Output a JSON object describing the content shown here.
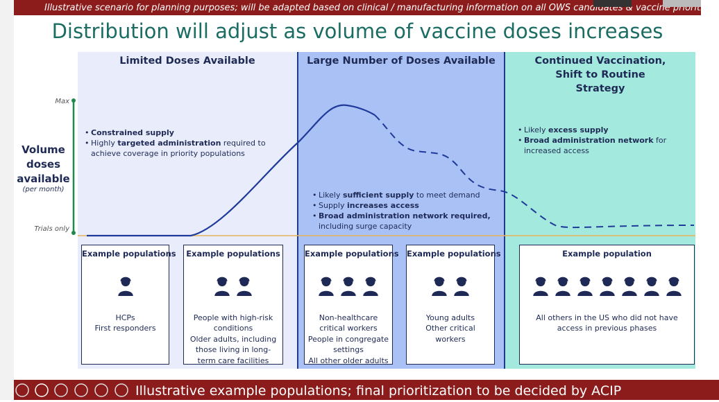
{
  "banner": "Illustrative scenario for planning purposes; will be adapted based on clinical / manufacturing information on all OWS candidates & vaccine prioritization",
  "title": "Distribution will adjust as volume of vaccine doses increases",
  "axis": {
    "label": "Volume doses available",
    "sublabel": "(per month)",
    "max": "Max",
    "min": "Trials only"
  },
  "phases": [
    {
      "heading": "Limited Doses Available",
      "bullets": [
        [
          {
            "text": "Constrained supply",
            "bold": true
          }
        ],
        [
          {
            "text": "Highly ",
            "bold": false
          },
          {
            "text": "targeted administration",
            "bold": true
          },
          {
            "text": " required to achieve coverage in priority populations",
            "bold": false
          }
        ]
      ]
    },
    {
      "heading": "Large Number of Doses Available",
      "bullets": [
        [
          {
            "text": "Likely ",
            "bold": false
          },
          {
            "text": "sufficient supply",
            "bold": true
          },
          {
            "text": " to meet demand",
            "bold": false
          }
        ],
        [
          {
            "text": "Supply ",
            "bold": false
          },
          {
            "text": "increases access",
            "bold": true
          }
        ],
        [
          {
            "text": "Broad administration network required,",
            "bold": true
          },
          {
            "text": " including surge capacity",
            "bold": false
          }
        ]
      ]
    },
    {
      "heading": "Continued Vaccination, Shift to Routine Strategy",
      "bullets": [
        [
          {
            "text": "Likely ",
            "bold": false
          },
          {
            "text": "excess supply",
            "bold": true
          }
        ],
        [
          {
            "text": "Broad administration network",
            "bold": true
          },
          {
            "text": " for increased access",
            "bold": false
          }
        ]
      ]
    }
  ],
  "populations": [
    {
      "heading": "Example populations",
      "lines": [
        "HCPs",
        "First responders"
      ]
    },
    {
      "heading": "Example populations",
      "lines": [
        "People with high-risk conditions",
        "Older adults, including those living in long-term care facilities"
      ]
    },
    {
      "heading": "Example populations",
      "lines": [
        "Non-healthcare critical workers",
        "People in congregate settings",
        "All other older adults"
      ]
    },
    {
      "heading": "Example populations",
      "lines": [
        "Young adults",
        "Other critical workers"
      ]
    },
    {
      "heading": "Example population",
      "lines": [
        "All others in the US who did not have access in previous phases"
      ]
    }
  ],
  "footer": "Illustrative example populations; final prioritization to be decided by ACIP"
}
